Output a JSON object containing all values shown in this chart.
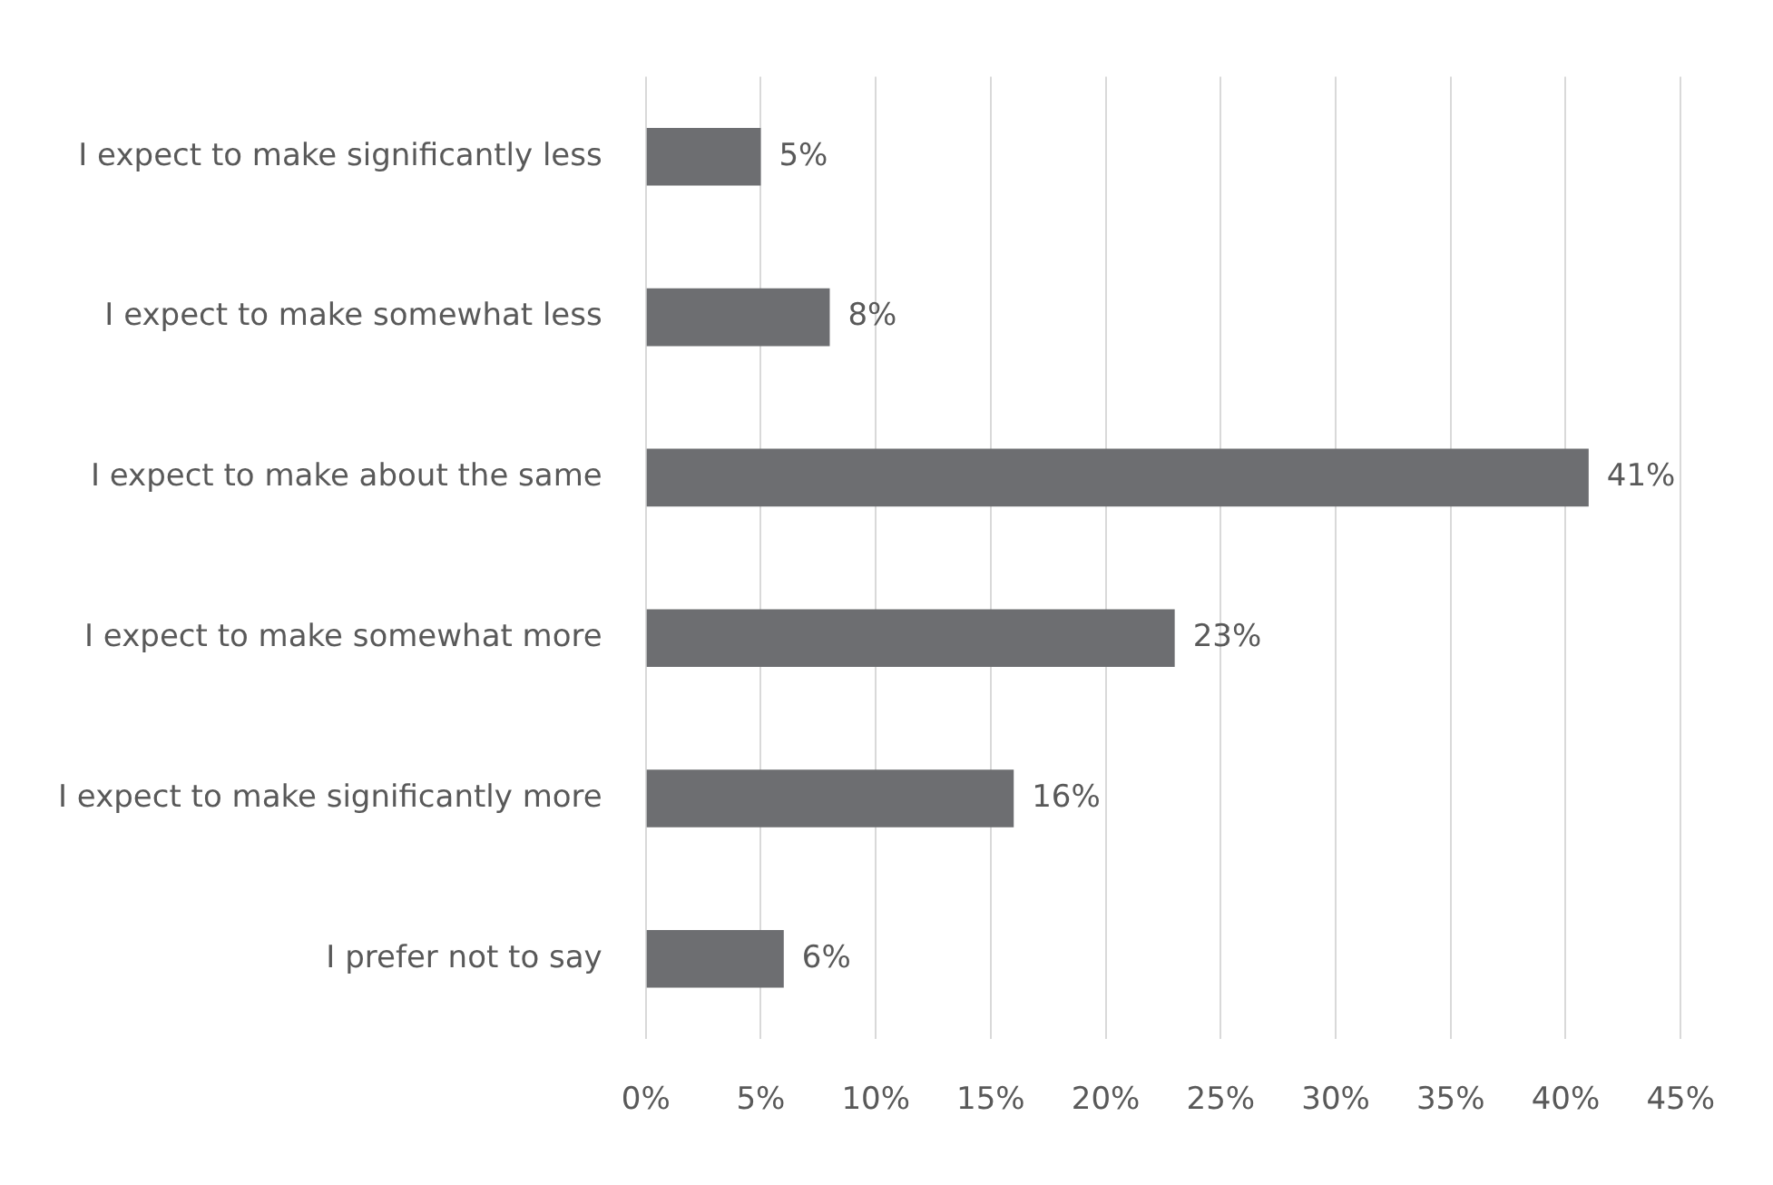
{
  "chart_data": {
    "type": "bar",
    "orientation": "horizontal",
    "categories": [
      "I expect to make significantly less",
      "I expect to make somewhat less",
      "I expect to make about the same",
      "I expect to make somewhat more",
      "I expect to make significantly more",
      "I prefer not to say"
    ],
    "values": [
      5,
      8,
      41,
      23,
      16,
      6
    ],
    "value_labels": [
      "5%",
      "8%",
      "41%",
      "23%",
      "16%",
      "6%"
    ],
    "color": "#6d6e71",
    "xlim": [
      0,
      45
    ],
    "xticks": [
      {
        "value": 0,
        "label": "0%"
      },
      {
        "value": 5,
        "label": "5%"
      },
      {
        "value": 10,
        "label": "10%"
      },
      {
        "value": 15,
        "label": "15%"
      },
      {
        "value": 20,
        "label": "20%"
      },
      {
        "value": 25,
        "label": "25%"
      },
      {
        "value": 30,
        "label": "30%"
      },
      {
        "value": 35,
        "label": "35%"
      },
      {
        "value": 40,
        "label": "40%"
      },
      {
        "value": 45,
        "label": "45%"
      }
    ],
    "grid": "x",
    "legend": false
  }
}
